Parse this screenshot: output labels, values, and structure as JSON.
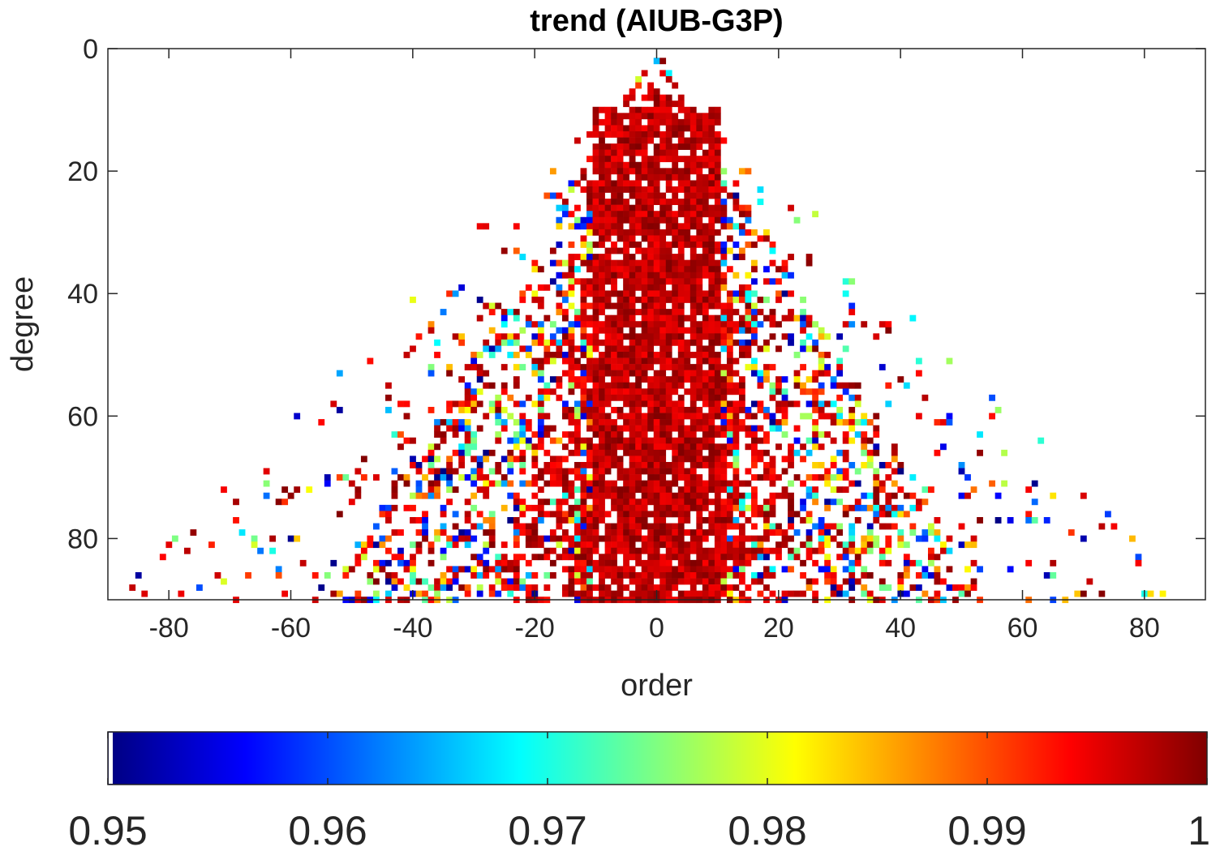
{
  "chart_data": {
    "type": "heatmap",
    "title": "trend (AIUB-G3P)",
    "xlabel": "order",
    "ylabel": "degree",
    "xlim": [
      -90,
      90
    ],
    "ylim": [
      0,
      90
    ],
    "y_reversed": true,
    "grid": false,
    "x_ticks": [
      -80,
      -60,
      -40,
      -20,
      0,
      20,
      40,
      60,
      80
    ],
    "x_tick_labels": [
      "-80",
      "-60",
      "-40",
      "-20",
      "0",
      "20",
      "40",
      "60",
      "80"
    ],
    "y_ticks": [
      0,
      20,
      40,
      60,
      80
    ],
    "y_tick_labels": [
      "0",
      "20",
      "40",
      "60",
      "80"
    ],
    "colormap": "jet",
    "color_limits": [
      0.95,
      1
    ],
    "colorbar_location": "bottom",
    "colorbar_ticks": [
      0.95,
      0.96,
      0.97,
      0.98,
      0.99,
      1
    ],
    "colorbar_tick_labels": [
      "0.95",
      "0.96",
      "0.97",
      "0.98",
      "0.99",
      "1"
    ],
    "colors": {
      "jet_stops": [
        "#000080",
        "#0000ff",
        "#00ffff",
        "#ffff00",
        "#ff0000",
        "#800000"
      ],
      "axis": "#262626"
    },
    "cell_filter": {
      "value_range": [
        0.95,
        1
      ],
      "near_zero_order_fill": "#800000",
      "outer_sparse_values": "mixed jet colors"
    }
  }
}
